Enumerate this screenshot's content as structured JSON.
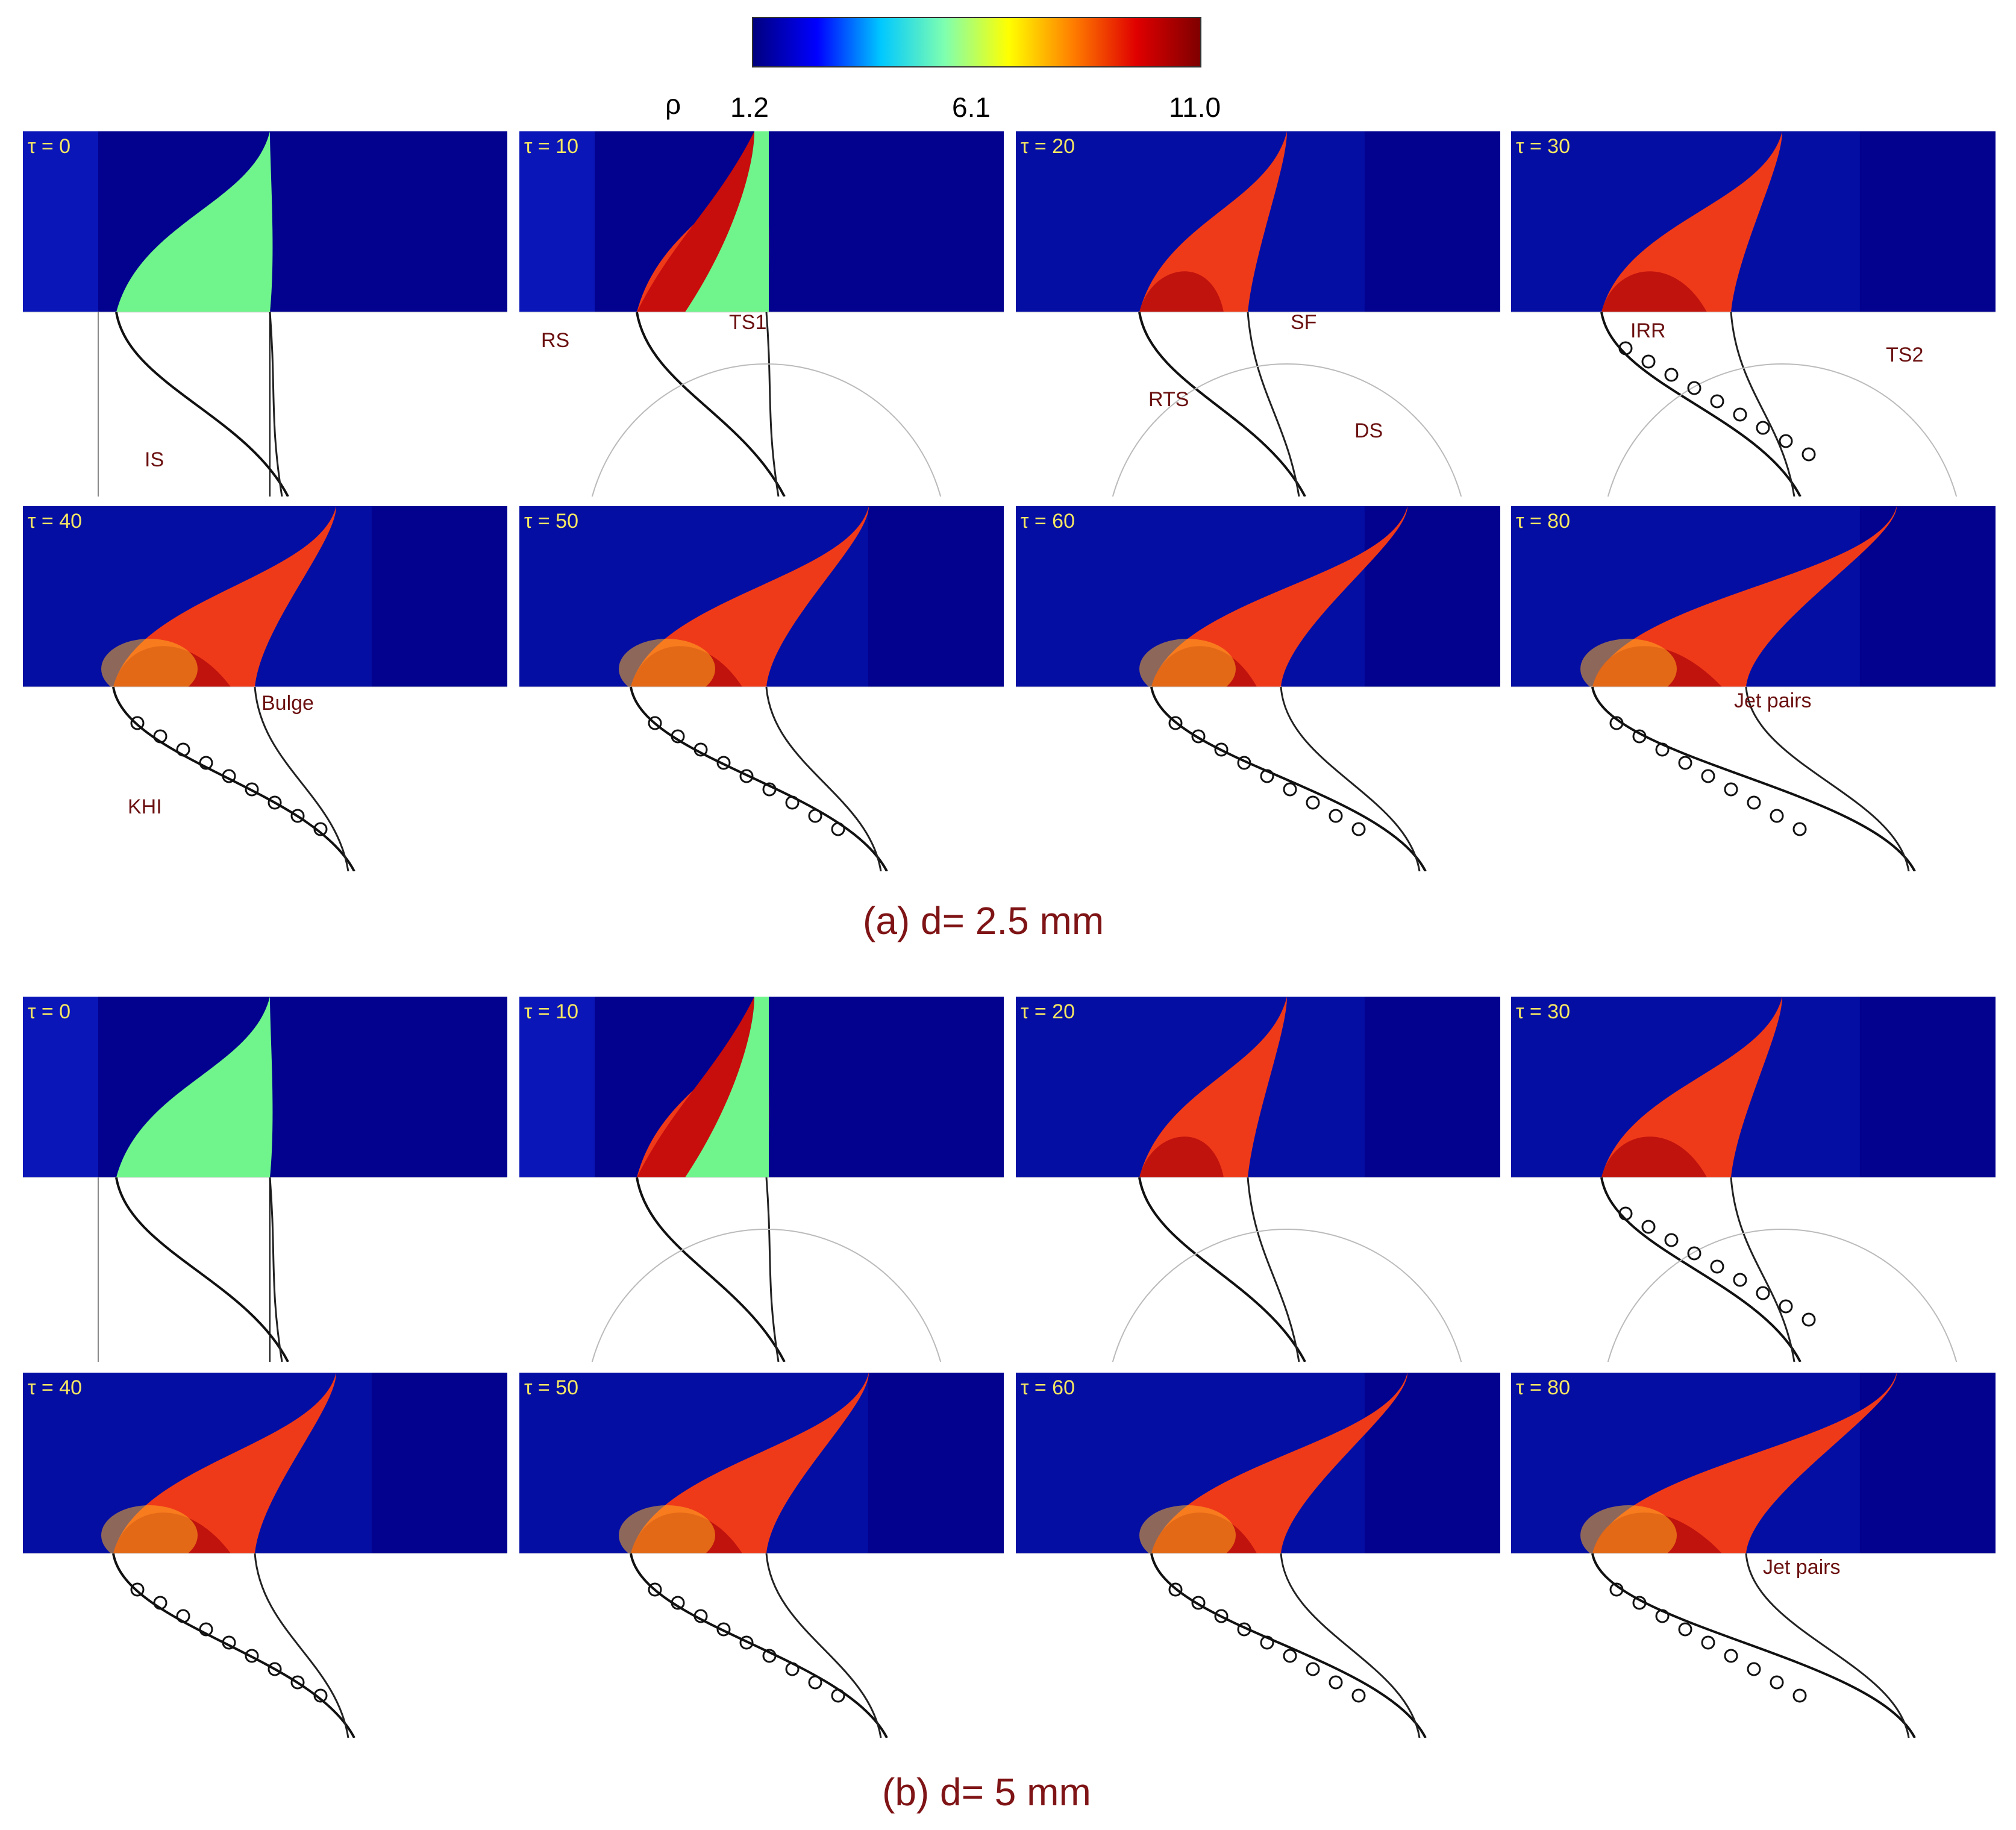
{
  "colorbar": {
    "symbol": "ρ",
    "ticks": [
      "1.2",
      "6.1",
      "11.0"
    ],
    "colors": [
      "#00007f",
      "#0000ff",
      "#00c8ff",
      "#7fffb0",
      "#ffff00",
      "#ff7f00",
      "#e00000",
      "#7f0000"
    ]
  },
  "rows": [
    {
      "panels": [
        {
          "tau": "τ = 0",
          "annotations": [
            {
              "text": "IS"
            }
          ]
        },
        {
          "tau": "τ = 10",
          "annotations": [
            {
              "text": "RS"
            },
            {
              "text": "TS1"
            }
          ]
        },
        {
          "tau": "τ = 20",
          "annotations": [
            {
              "text": "SF"
            },
            {
              "text": "RTS"
            },
            {
              "text": "DS"
            }
          ]
        },
        {
          "tau": "τ = 30",
          "annotations": [
            {
              "text": "IRR"
            },
            {
              "text": "TS2"
            }
          ]
        }
      ]
    },
    {
      "panels": [
        {
          "tau": "τ = 40",
          "annotations": [
            {
              "text": "Bulge"
            },
            {
              "text": "KHI"
            }
          ]
        },
        {
          "tau": "τ = 50",
          "annotations": []
        },
        {
          "tau": "τ = 60",
          "annotations": []
        },
        {
          "tau": "τ = 80",
          "annotations": [
            {
              "text": "Jet pairs"
            }
          ]
        }
      ]
    },
    {
      "panels": [
        {
          "tau": "τ = 0",
          "annotations": []
        },
        {
          "tau": "τ = 10",
          "annotations": []
        },
        {
          "tau": "τ = 20",
          "annotations": []
        },
        {
          "tau": "τ = 30",
          "annotations": []
        }
      ]
    },
    {
      "panels": [
        {
          "tau": "τ = 40",
          "annotations": []
        },
        {
          "tau": "τ = 50",
          "annotations": []
        },
        {
          "tau": "τ = 60",
          "annotations": []
        },
        {
          "tau": "τ = 80",
          "annotations": [
            {
              "text": "Jet pairs"
            }
          ]
        }
      ]
    }
  ],
  "captions": [
    "(a) d= 2.5 mm",
    "(b) d= 5 mm"
  ]
}
